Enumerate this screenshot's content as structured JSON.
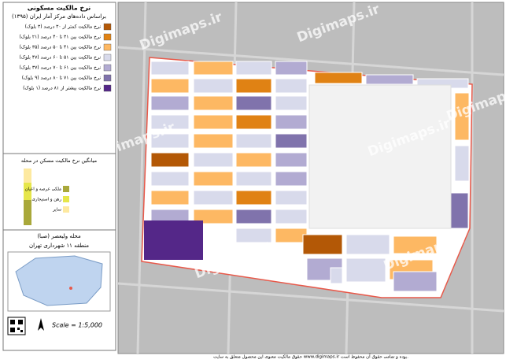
{
  "map": {
    "title": "نرخ مالکیت مسکونی",
    "subtitle": "براساس داده‌های مرکز آمار ایران (۱۳۹۵)",
    "legend": [
      {
        "label": "نرخ مالکیت کمتر از ۳۰ درصد (۳ بلوک)",
        "color": "#b35806"
      },
      {
        "label": "نرخ مالکیت بین ۳۱ تا ۴۰ درصد (۲۱ بلوک)",
        "color": "#e08214"
      },
      {
        "label": "نرخ مالکیت بین ۴۱ تا ۵۰ درصد (۳۵ بلوک)",
        "color": "#fdb863"
      },
      {
        "label": "نرخ مالکیت بین ۵۱ تا ۶۰ درصد (۴۷ بلوک)",
        "color": "#d8daeb"
      },
      {
        "label": "نرخ مالکیت بین ۶۱ تا ۷۰ درصد (۳۷ بلوک)",
        "color": "#b2abd2"
      },
      {
        "label": "نرخ مالکیت بین ۷۱ تا ۸۰ درصد (۹ بلوک)",
        "color": "#8073ac"
      },
      {
        "label": "نرخ مالکیت بیشتر از ۸۱ درصد (۱ بلوک)",
        "color": "#542788"
      }
    ],
    "chart_title": "میانگین نرخ مالکیت مسکن در محله",
    "chart_legend": [
      {
        "label": "ملکی عرصه و اعیان",
        "color": "#a9a83a"
      },
      {
        "label": "رهن و استیجاری",
        "color": "#e6e64a"
      },
      {
        "label": "سایر",
        "color": "#fde9a0"
      }
    ],
    "neighborhood": "محله ولیعصر (صبا)",
    "district": "منطقه ۱۱ شهرداری تهران",
    "scale": "Scale = 1:5,000",
    "watermark": "Digimaps.ir",
    "footer": "حقوق مالکیت معنوی این محصول متعلق به سایت www.digimaps.ir بوده و تمامی حقوق آن محفوظ است."
  }
}
